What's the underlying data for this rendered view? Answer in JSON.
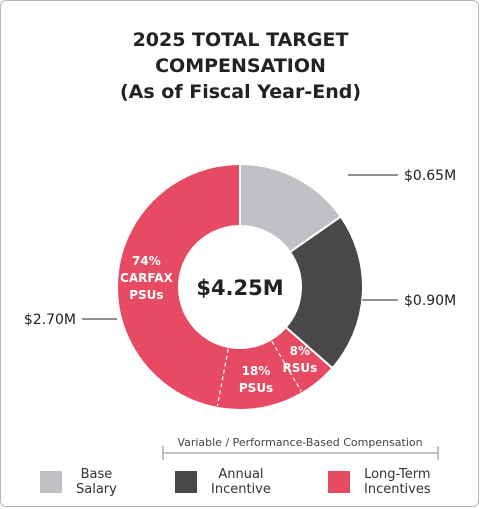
{
  "title": {
    "line1": "2025 TOTAL TARGET",
    "line2": "COMPENSATION",
    "line3": "(As of Fiscal Year-End)"
  },
  "chart_data": {
    "type": "donut",
    "total_label": "$4.25M",
    "total": 4.25,
    "segments": [
      {
        "name": "Base Salary",
        "value": 0.65,
        "color": "#c1c1c5",
        "callout": "$0.65M"
      },
      {
        "name": "Annual Incentive",
        "value": 0.9,
        "color": "#48484a",
        "callout": "$0.90M"
      },
      {
        "name": "Long-Term Incentives",
        "value": 2.7,
        "color": "#e64b63",
        "callout": "$2.70M",
        "sub_segments": [
          {
            "label_lines": [
              "8%",
              "RSUs"
            ],
            "share_of_ltip": 0.08
          },
          {
            "label_lines": [
              "18%",
              "PSUs"
            ],
            "share_of_ltip": 0.18
          },
          {
            "label_lines": [
              "74%",
              "CARFAX",
              "PSUs"
            ],
            "share_of_ltip": 0.74
          }
        ]
      }
    ],
    "bracket_label": "Variable / Performance-Based Compensation",
    "legend": [
      {
        "lines": [
          "Base",
          "Salary"
        ],
        "color": "#c1c1c5"
      },
      {
        "lines": [
          "Annual",
          "Incentive"
        ],
        "color": "#48484a"
      },
      {
        "lines": [
          "Long-Term",
          "Incentives"
        ],
        "color": "#e64b63"
      }
    ]
  }
}
